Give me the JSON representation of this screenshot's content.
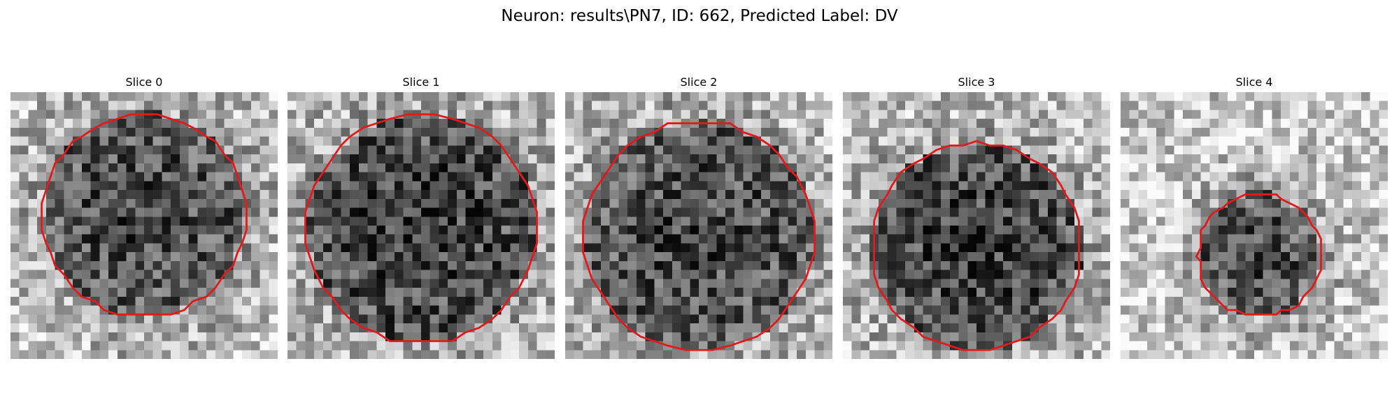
{
  "figure": {
    "title": "Neuron: results\\PN7, ID: 662, Predicted Label: DV",
    "contour_color": "#e31a1c",
    "colormap": "grayscale",
    "slices": [
      {
        "label": "Slice 0",
        "seed": 11,
        "center": [
          0.5,
          0.46
        ],
        "radius": 0.38,
        "darkness": 0.38
      },
      {
        "label": "Slice 1",
        "seed": 23,
        "center": [
          0.5,
          0.51
        ],
        "radius": 0.43,
        "darkness": 0.42
      },
      {
        "label": "Slice 2",
        "seed": 37,
        "center": [
          0.5,
          0.54
        ],
        "radius": 0.43,
        "darkness": 0.38
      },
      {
        "label": "Slice 3",
        "seed": 53,
        "center": [
          0.5,
          0.58
        ],
        "radius": 0.39,
        "darkness": 0.42
      },
      {
        "label": "Slice 4",
        "seed": 71,
        "center": [
          0.52,
          0.61
        ],
        "radius": 0.23,
        "darkness": 0.36
      }
    ]
  }
}
